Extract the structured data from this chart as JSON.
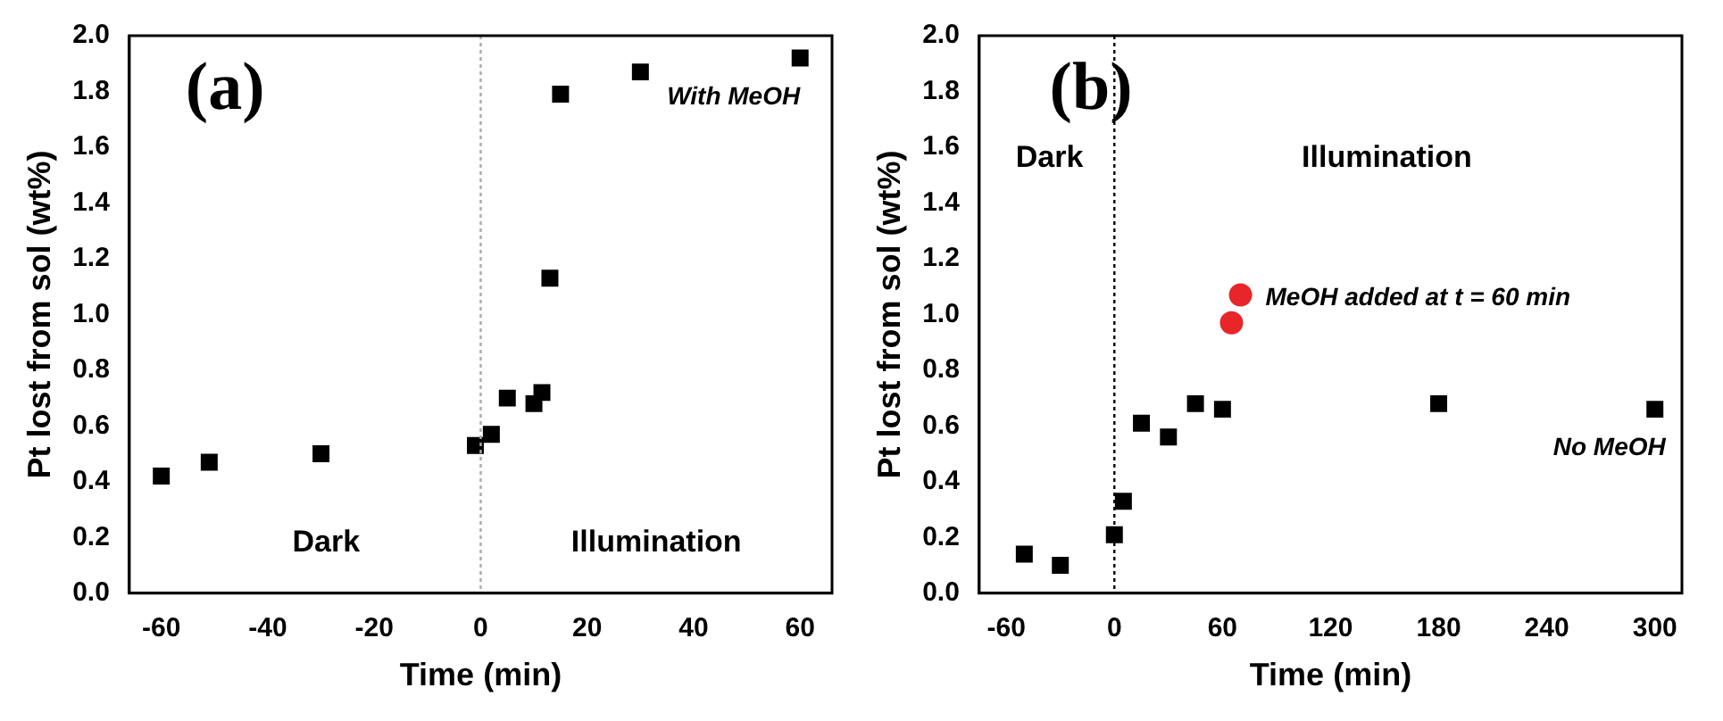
{
  "chart_data": [
    {
      "type": "scatter",
      "xlabel": "Time (min)",
      "ylabel": "Pt lost from sol (wt%)",
      "xlim": [
        -66,
        66
      ],
      "xticks": [
        -60,
        -40,
        -20,
        0,
        20,
        40,
        60
      ],
      "ylim": [
        0,
        2
      ],
      "yticks": [
        {
          "value": 0,
          "label": "0.0"
        },
        0.2,
        0.4,
        0.6,
        0.8,
        {
          "value": 1,
          "label": "1.0"
        },
        1.2,
        1.4,
        1.6,
        1.8,
        {
          "value": 2,
          "label": "2.0"
        }
      ],
      "grid": false,
      "legend": false,
      "marker": "square",
      "series": [
        {
          "name": "With MeOH",
          "color": "#000000",
          "x": [
            -60,
            -51,
            -30,
            -1,
            2,
            5,
            10,
            11.5,
            13,
            15,
            30,
            60
          ],
          "values": [
            0.42,
            0.47,
            0.5,
            0.53,
            0.57,
            0.7,
            0.68,
            0.72,
            1.13,
            1.79,
            1.87,
            1.92
          ]
        }
      ],
      "ref_lines": [
        {
          "axis": "x",
          "value": 0,
          "color": "#aaaaaa",
          "line_style": "dotted"
        }
      ],
      "annotations": [
        "(a)",
        "Dark",
        "Illumination"
      ]
    },
    {
      "type": "scatter",
      "xlabel": "Time (min)",
      "ylabel": "Pt lost from sol (wt%)",
      "xlim": [
        -75,
        315
      ],
      "xticks": [
        -60,
        0,
        60,
        120,
        180,
        240,
        300
      ],
      "ylim": [
        0,
        2
      ],
      "yticks": [
        {
          "value": 0,
          "label": "0.0"
        },
        0.2,
        0.4,
        0.6,
        0.8,
        {
          "value": 1,
          "label": "1.0"
        },
        1.2,
        1.4,
        1.6,
        1.8,
        {
          "value": 2,
          "label": "2.0"
        }
      ],
      "grid": false,
      "legend": false,
      "marker": "square",
      "series": [
        {
          "name": "No MeOH",
          "color": "#000000",
          "x": [
            -50,
            -30,
            0,
            5,
            15,
            30,
            45,
            60,
            180,
            300
          ],
          "values": [
            0.14,
            0.1,
            0.21,
            0.33,
            0.61,
            0.56,
            0.68,
            0.66,
            0.68,
            0.66
          ]
        },
        {
          "name": "MeOH added at t = 60 min",
          "color": "#e8262a",
          "marker": "circle",
          "x": [
            65,
            70
          ],
          "values": [
            0.97,
            1.07
          ]
        }
      ],
      "ref_lines": [
        {
          "axis": "x",
          "value": 0,
          "color": "#000000",
          "line_style": "dotted"
        }
      ],
      "annotations": [
        "(b)",
        "Dark",
        "Illumination"
      ]
    }
  ]
}
